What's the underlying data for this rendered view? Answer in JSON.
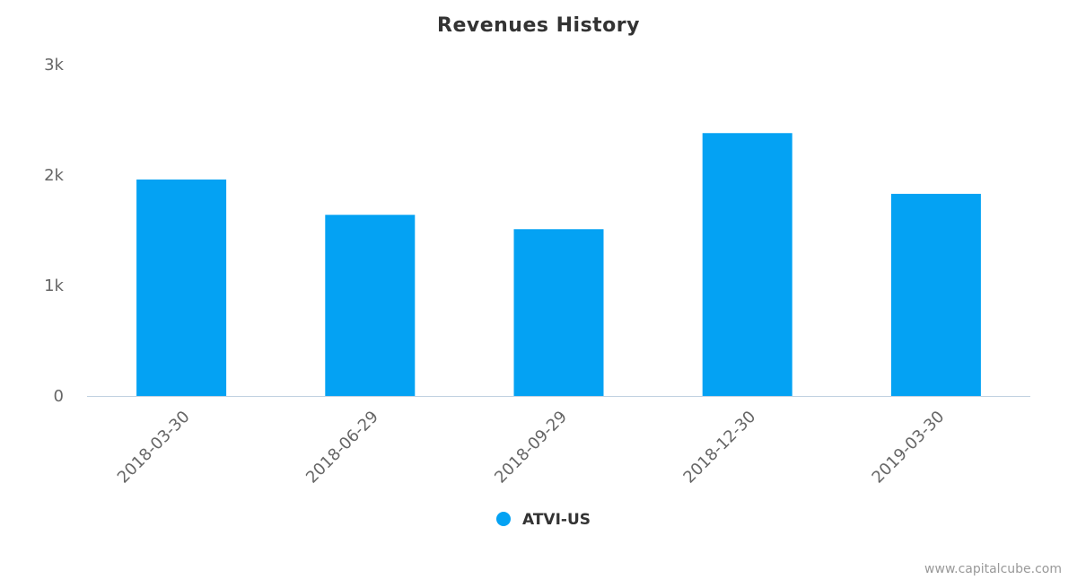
{
  "chart_data": {
    "type": "bar",
    "title": "Revenues History",
    "categories": [
      "2018-03-30",
      "2018-06-29",
      "2018-09-29",
      "2018-12-30",
      "2019-03-30"
    ],
    "series": [
      {
        "name": "ATVI-US",
        "color": "#04a2f3",
        "values": [
          1960,
          1640,
          1510,
          2380,
          1830
        ]
      }
    ],
    "ylim": [
      0,
      3000
    ],
    "yticks": [
      0,
      1000,
      2000,
      3000
    ],
    "ytick_labels": [
      "0",
      "1k",
      "2k",
      "3k"
    ],
    "grid": false,
    "legend": "bottom-center",
    "xlabel": "",
    "ylabel": ""
  },
  "credit": "www.capitalcube.com",
  "colors": {
    "bar": "#04a2f3",
    "axis": "#c0d0e0",
    "text": "#333333",
    "tick": "#666666"
  }
}
